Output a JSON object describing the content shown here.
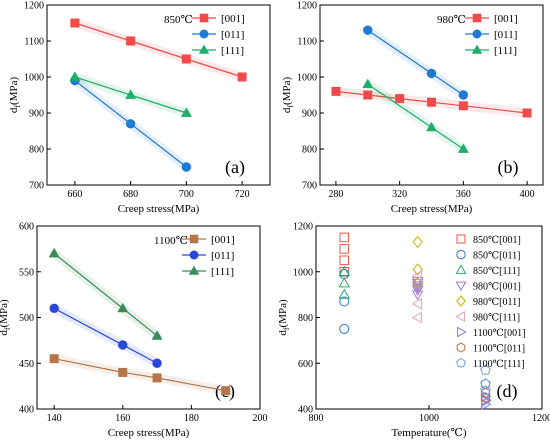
{
  "chart_data": [
    {
      "type": "line",
      "panel_label": "(a)",
      "annotation": "850℃",
      "xlabel": "Creep stress(MPa)",
      "ylabel_main": "d",
      "ylabel_sub": "f",
      "ylabel_unit": "(MPa)",
      "xlim": [
        650,
        730
      ],
      "ylim": [
        700,
        1200
      ],
      "xticks": [
        660,
        680,
        700,
        720
      ],
      "yticks": [
        700,
        800,
        900,
        1000,
        1100,
        1200
      ],
      "grid": false,
      "legend_position": "top-right",
      "series": [
        {
          "name": "[001]",
          "color": "#f04a4a",
          "marker": "square",
          "x": [
            660,
            680,
            700,
            720
          ],
          "y": [
            1150,
            1100,
            1050,
            1000
          ]
        },
        {
          "name": "[011]",
          "color": "#1f7bd1",
          "marker": "circle",
          "x": [
            660,
            680,
            700
          ],
          "y": [
            990,
            870,
            750
          ]
        },
        {
          "name": "[111]",
          "color": "#1fae6a",
          "marker": "triangle",
          "x": [
            660,
            680,
            700
          ],
          "y": [
            1000,
            950,
            900
          ]
        }
      ]
    },
    {
      "type": "line",
      "panel_label": "(b)",
      "annotation": "980℃",
      "xlabel": "Creep stress(MPa)",
      "ylabel_main": "d",
      "ylabel_sub": "f",
      "ylabel_unit": "(MPa)",
      "xlim": [
        270,
        410
      ],
      "ylim": [
        700,
        1200
      ],
      "xticks": [
        280,
        320,
        360,
        400
      ],
      "yticks": [
        700,
        800,
        900,
        1000,
        1100,
        1200
      ],
      "grid": false,
      "legend_position": "top-right",
      "series": [
        {
          "name": "[001]",
          "color": "#f04a4a",
          "marker": "square",
          "x": [
            280,
            300,
            320,
            340,
            360,
            400
          ],
          "y": [
            960,
            950,
            940,
            930,
            920,
            900
          ]
        },
        {
          "name": "[011]",
          "color": "#1f7bd1",
          "marker": "circle",
          "x": [
            300,
            340,
            360
          ],
          "y": [
            1130,
            1010,
            950
          ]
        },
        {
          "name": "[111]",
          "color": "#1fae6a",
          "marker": "triangle",
          "x": [
            300,
            340,
            360
          ],
          "y": [
            980,
            860,
            800
          ]
        }
      ]
    },
    {
      "type": "line",
      "panel_label": "(c)",
      "annotation": "1100℃",
      "xlabel": "Creep stress(MPa)",
      "ylabel_main": "d",
      "ylabel_sub": "f",
      "ylabel_unit": "(MPa)",
      "xlim": [
        135,
        200
      ],
      "ylim": [
        400,
        600
      ],
      "xticks": [
        140,
        160,
        180,
        200
      ],
      "yticks": [
        400,
        450,
        500,
        550,
        600
      ],
      "grid": false,
      "legend_position": "top-right",
      "series": [
        {
          "name": "[001]",
          "color": "#b5764a",
          "marker": "square",
          "x": [
            140,
            160,
            170,
            190
          ],
          "y": [
            455,
            440,
            434,
            420
          ]
        },
        {
          "name": "[011]",
          "color": "#2a48d8",
          "marker": "circle",
          "x": [
            140,
            160,
            170
          ],
          "y": [
            510,
            470,
            450
          ]
        },
        {
          "name": "[111]",
          "color": "#3d8a5a",
          "marker": "triangle",
          "x": [
            140,
            160,
            170
          ],
          "y": [
            570,
            510,
            480
          ]
        }
      ]
    },
    {
      "type": "scatter",
      "panel_label": "(d)",
      "xlabel": "Temperature(℃)",
      "ylabel_main": "d",
      "ylabel_sub": "f",
      "ylabel_unit": "(MPa)",
      "xlim": [
        800,
        1200
      ],
      "ylim": [
        400,
        1200
      ],
      "xticks": [
        800,
        1000,
        1200
      ],
      "yticks": [
        400,
        600,
        800,
        1000,
        1200
      ],
      "grid": false,
      "legend_position": "top-right",
      "series": [
        {
          "name": "850℃[001]",
          "color": "#e8584a",
          "marker": "square-open",
          "x": [
            850,
            850,
            850,
            850
          ],
          "y": [
            1150,
            1100,
            1050,
            1000
          ]
        },
        {
          "name": "850℃[011]",
          "color": "#2e78cf",
          "marker": "circle-open",
          "x": [
            850,
            850,
            850
          ],
          "y": [
            990,
            870,
            750
          ]
        },
        {
          "name": "850℃[111]",
          "color": "#2fa36a",
          "marker": "triangle-open",
          "x": [
            850,
            850,
            850
          ],
          "y": [
            1000,
            950,
            900
          ]
        },
        {
          "name": "980℃[001]",
          "color": "#a07ad8",
          "marker": "triangle-down-open",
          "x": [
            980,
            980,
            980,
            980,
            980,
            980
          ],
          "y": [
            960,
            950,
            940,
            930,
            920,
            900
          ]
        },
        {
          "name": "980℃[011]",
          "color": "#c8b400",
          "marker": "diamond-open",
          "x": [
            980,
            980,
            980
          ],
          "y": [
            1130,
            1010,
            950
          ]
        },
        {
          "name": "980℃[111]",
          "color": "#e0a0b8",
          "marker": "triangle-left-open",
          "x": [
            980,
            980,
            980
          ],
          "y": [
            980,
            860,
            800
          ]
        },
        {
          "name": "1100℃[001]",
          "color": "#7a7ae8",
          "marker": "triangle-right-open",
          "x": [
            1100,
            1100,
            1100,
            1100
          ],
          "y": [
            455,
            440,
            434,
            420
          ]
        },
        {
          "name": "1100℃[011]",
          "color": "#c07040",
          "marker": "hexagon-open",
          "x": [
            1100,
            1100,
            1100
          ],
          "y": [
            510,
            470,
            450
          ]
        },
        {
          "name": "1100℃[111]",
          "color": "#6aa0e0",
          "marker": "pentagon-open",
          "x": [
            1100,
            1100,
            1100
          ],
          "y": [
            570,
            510,
            480
          ]
        }
      ]
    }
  ]
}
